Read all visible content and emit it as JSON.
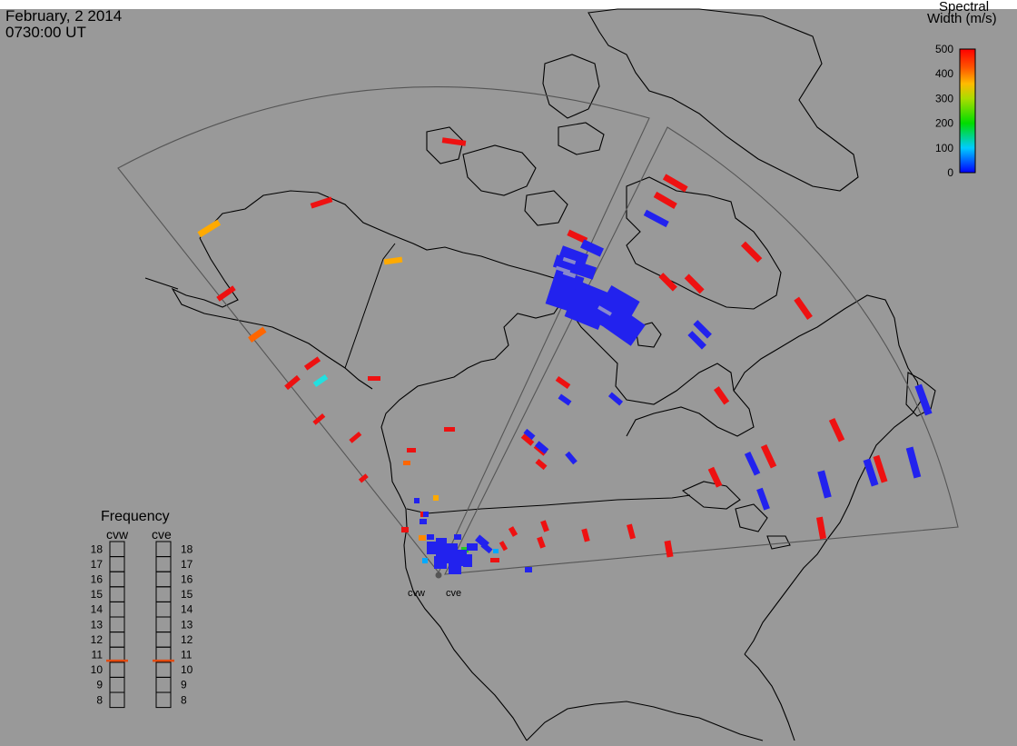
{
  "header": {
    "date": "February, 2 2014",
    "time": "0730:00 UT"
  },
  "colorbar": {
    "title_line1": "Spectral",
    "title_line2": "Width (m/s)",
    "ticks": [
      "500",
      "400",
      "300",
      "200",
      "100",
      "0"
    ],
    "range": [
      0,
      500
    ]
  },
  "frequency_panel": {
    "title": "Frequency",
    "radars": [
      "cvw",
      "cve"
    ],
    "scale": [
      "18",
      "17",
      "16",
      "15",
      "14",
      "13",
      "12",
      "11",
      "10",
      "9",
      "8"
    ],
    "current_mhz": {
      "cvw": 10.6,
      "cve": 10.6
    },
    "marker_color": "#e24a10"
  },
  "sites": {
    "cvw_label": "cvw",
    "cve_label": "cve"
  },
  "colors": {
    "background": "#999999",
    "coast": "#000000",
    "fov": "#555555"
  }
}
